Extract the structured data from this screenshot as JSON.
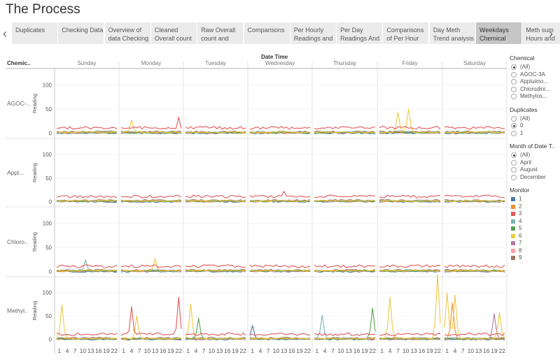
{
  "title": "The Process",
  "tabs": [
    {
      "label": "Duplicates"
    },
    {
      "label": "Checking Data"
    },
    {
      "label": "Overview of data Checking"
    },
    {
      "label": "Cleaned Overall count"
    },
    {
      "label": "Raw Overall count and"
    },
    {
      "label": "Comparisons"
    },
    {
      "label": "Per Hourly Readings and"
    },
    {
      "label": "Per Day Readings And"
    },
    {
      "label": "Comparisons of Per Hour"
    },
    {
      "label": "Day Meth Trend analysis"
    },
    {
      "label": "Weekdays Chemical Trend"
    },
    {
      "label": "Meth sum Hours and"
    }
  ],
  "active_tab": 10,
  "filters": {
    "chemical": {
      "title": "Chemical",
      "options": [
        "(All)",
        "AGOC-3A",
        "Appluimo...",
        "Chlorodini...",
        "Methylos..."
      ],
      "selected": 0
    },
    "duplicates": {
      "title": "Duplicates",
      "options": [
        "(All)",
        "0",
        "1"
      ],
      "selected": 1
    },
    "month": {
      "title": "Month of Date T..",
      "options": [
        "(All)",
        "April",
        "August",
        "December"
      ],
      "selected": 0
    }
  },
  "monitor_legend": {
    "title": "Monitor",
    "items": [
      {
        "label": "1",
        "color": "#4e79a7"
      },
      {
        "label": "2",
        "color": "#f28e2b"
      },
      {
        "label": "3",
        "color": "#e15759"
      },
      {
        "label": "4",
        "color": "#76b7b2"
      },
      {
        "label": "5",
        "color": "#59a14f"
      },
      {
        "label": "6",
        "color": "#edc948"
      },
      {
        "label": "7",
        "color": "#b07aa1"
      },
      {
        "label": "8",
        "color": "#ff9da7"
      },
      {
        "label": "9",
        "color": "#9c755f"
      }
    ]
  },
  "chart_data": {
    "type": "line",
    "title": "",
    "column_header": "Date Time",
    "row_header": "Chemic..",
    "columns": [
      "Sunday",
      "Monday",
      "Tuesday",
      "Wednesday",
      "Thursday",
      "Friday",
      "Saturday"
    ],
    "rows": [
      "AGOC-..",
      "Appl...",
      "Chloro..",
      "Methyl.."
    ],
    "ylabel": "Reading",
    "yticks": [
      0,
      50,
      100
    ],
    "ylim": [
      -5,
      125
    ],
    "xticks": [
      1,
      4,
      7,
      10,
      13,
      16,
      19,
      22
    ],
    "xlim": [
      0,
      23
    ],
    "x_tick_labels_shown_under": "Sunday",
    "peaks": [
      {
        "row": 0,
        "col": 1,
        "monitor": "3",
        "x": 22,
        "y": 33
      },
      {
        "row": 0,
        "col": 1,
        "monitor": "6",
        "x": 4,
        "y": 27
      },
      {
        "row": 0,
        "col": 5,
        "monitor": "6",
        "x": 7,
        "y": 43
      },
      {
        "row": 0,
        "col": 5,
        "monitor": "6",
        "x": 11,
        "y": 50
      },
      {
        "row": 1,
        "col": 3,
        "monitor": "3",
        "x": 13,
        "y": 22
      },
      {
        "row": 2,
        "col": 0,
        "monitor": "4",
        "x": 11,
        "y": 24
      },
      {
        "row": 2,
        "col": 1,
        "monitor": "6",
        "x": 13,
        "y": 27
      },
      {
        "row": 3,
        "col": 0,
        "monitor": "6",
        "x": 2,
        "y": 74
      },
      {
        "row": 3,
        "col": 1,
        "monitor": "3",
        "x": 4,
        "y": 70
      },
      {
        "row": 3,
        "col": 1,
        "monitor": "3",
        "x": 22,
        "y": 90
      },
      {
        "row": 3,
        "col": 1,
        "monitor": "6",
        "x": 6,
        "y": 50
      },
      {
        "row": 3,
        "col": 2,
        "monitor": "6",
        "x": 2,
        "y": 76
      },
      {
        "row": 3,
        "col": 2,
        "monitor": "5",
        "x": 5,
        "y": 45
      },
      {
        "row": 3,
        "col": 3,
        "monitor": "1",
        "x": 1,
        "y": 30
      },
      {
        "row": 3,
        "col": 4,
        "monitor": "4",
        "x": 3,
        "y": 52
      },
      {
        "row": 3,
        "col": 4,
        "monitor": "5",
        "x": 22,
        "y": 67
      },
      {
        "row": 3,
        "col": 5,
        "monitor": "6",
        "x": 22,
        "y": 138
      },
      {
        "row": 3,
        "col": 5,
        "monitor": "6",
        "x": 4,
        "y": 90
      },
      {
        "row": 3,
        "col": 6,
        "monitor": "6",
        "x": 1,
        "y": 100
      },
      {
        "row": 3,
        "col": 6,
        "monitor": "6",
        "x": 4,
        "y": 95
      },
      {
        "row": 3,
        "col": 6,
        "monitor": "2",
        "x": 3,
        "y": 78
      },
      {
        "row": 3,
        "col": 6,
        "monitor": "6",
        "x": 21,
        "y": 58
      },
      {
        "row": 3,
        "col": 6,
        "monitor": "7",
        "x": 19,
        "y": 55
      }
    ]
  }
}
